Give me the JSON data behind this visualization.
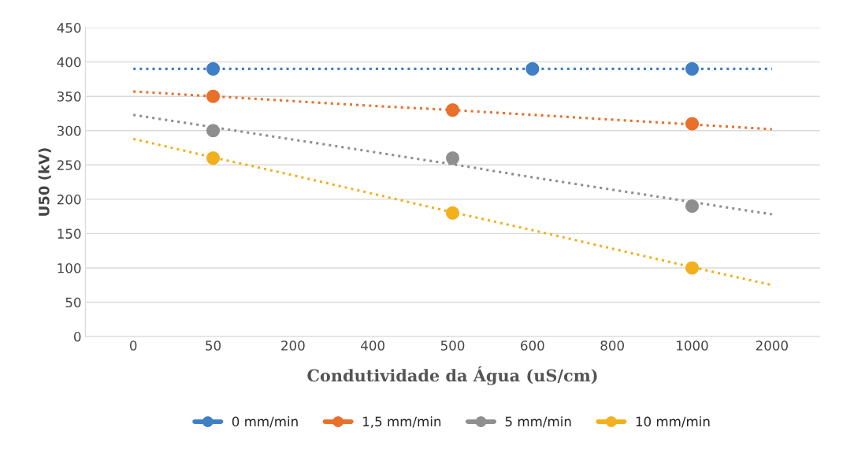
{
  "chart_data": {
    "type": "scatter",
    "xlabel": "Condutividade da Água (uS/cm)",
    "ylabel": "U50 (kV)",
    "categories": [
      "0",
      "50",
      "200",
      "400",
      "500",
      "600",
      "800",
      "1000",
      "2000"
    ],
    "ylim": [
      0,
      450
    ],
    "yticks": [
      0,
      50,
      100,
      150,
      200,
      250,
      300,
      350,
      400,
      450
    ],
    "grid": "y",
    "legend": "bottom",
    "marker": "circle",
    "series": [
      {
        "name": "0 mm/min",
        "color": "#3f7fc6",
        "values": [
          null,
          390,
          null,
          null,
          null,
          390,
          null,
          390,
          null
        ]
      },
      {
        "name": "1,5 mm/min",
        "color": "#e8702a",
        "values": [
          null,
          350,
          null,
          null,
          330,
          null,
          null,
          310,
          null
        ]
      },
      {
        "name": "5 mm/min",
        "color": "#8f8f8f",
        "values": [
          null,
          300,
          null,
          null,
          260,
          null,
          null,
          190,
          null
        ]
      },
      {
        "name": "10 mm/min",
        "color": "#f2b01e",
        "values": [
          null,
          260,
          null,
          null,
          180,
          null,
          null,
          100,
          null
        ]
      },
      {
        "type": "line",
        "line_style": "dotted",
        "marker": "none",
        "color": "#3f7fc6",
        "values": [
          390,
          390,
          390,
          390,
          390,
          390,
          390,
          390,
          390
        ]
      },
      {
        "type": "line",
        "line_style": "dotted",
        "marker": "none",
        "color": "#e8702a",
        "values": [
          357,
          350,
          343,
          336,
          330,
          323,
          316,
          309,
          302
        ]
      },
      {
        "type": "line",
        "line_style": "dotted",
        "marker": "none",
        "color": "#8f8f8f",
        "values": [
          323,
          305,
          287,
          269,
          251,
          232,
          214,
          196,
          178
        ]
      },
      {
        "type": "line",
        "line_style": "dotted",
        "marker": "none",
        "color": "#f2b01e",
        "values": [
          288,
          261,
          235,
          208,
          181,
          155,
          128,
          101,
          75
        ]
      }
    ]
  }
}
